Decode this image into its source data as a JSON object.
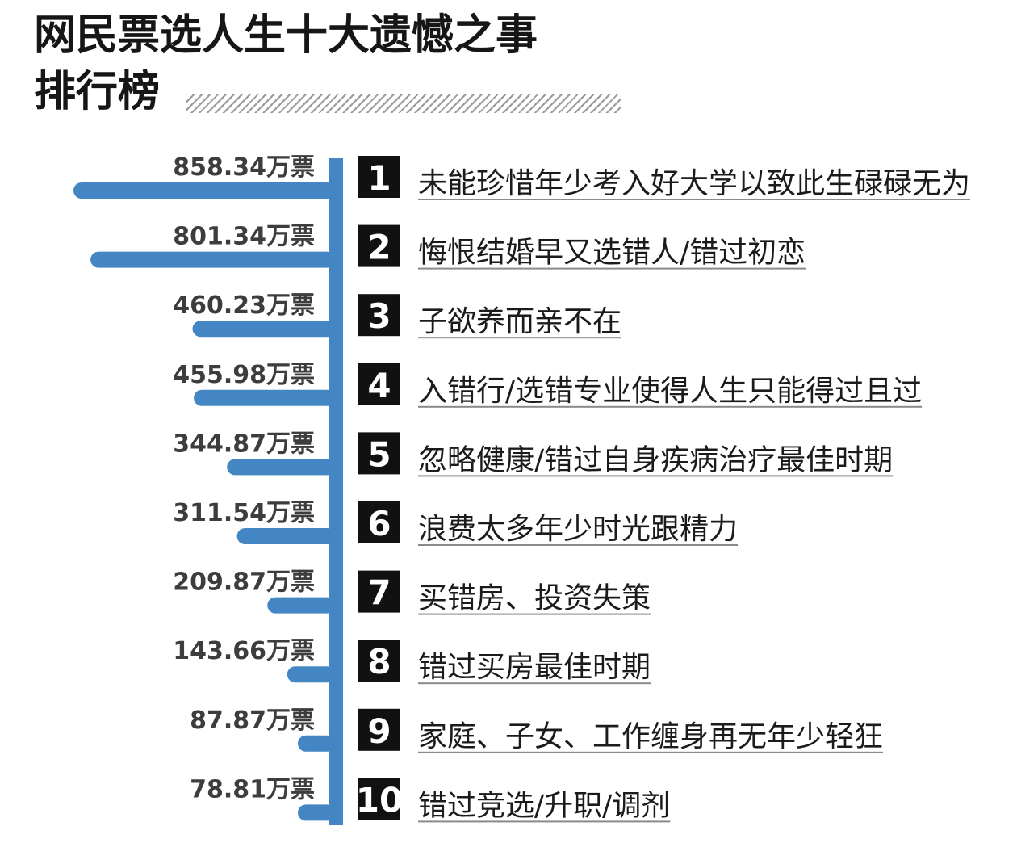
{
  "title": {
    "line1": "网民票选人生十大遗憾之事",
    "line2": "排行榜"
  },
  "colors": {
    "bar": "#4386c3",
    "badge": "#111111",
    "text": "#1b1b1b",
    "underline": "#8a8a8a"
  },
  "unit": "万票",
  "chart_data": {
    "type": "bar",
    "orientation": "horizontal",
    "ranks": [
      "1",
      "2",
      "3",
      "4",
      "5",
      "6",
      "7",
      "8",
      "9",
      "10"
    ],
    "categories": [
      "未能珍惜年少考入好大学以致此生碌碌无为",
      "悔恨结婚早又选错人/错过初恋",
      "子欲养而亲不在",
      "入错行/选错专业使得人生只能得过且过",
      "忽略健康/错过自身疾病治疗最佳时期",
      "浪费太多年少时光跟精力",
      "买错房、投资失策",
      "错过买房最佳时期",
      "家庭、子女、工作缠身再无年少轻狂",
      "错过竞选/升职/调剂"
    ],
    "values": [
      858.34,
      801.34,
      460.23,
      455.98,
      344.87,
      311.54,
      209.87,
      143.66,
      87.87,
      78.81
    ],
    "value_labels": [
      "858.34万票",
      "801.34万票",
      "460.23万票",
      "455.98万票",
      "344.87万票",
      "311.54万票",
      "209.87万票",
      "143.66万票",
      "87.87万票",
      "78.81万票"
    ]
  }
}
